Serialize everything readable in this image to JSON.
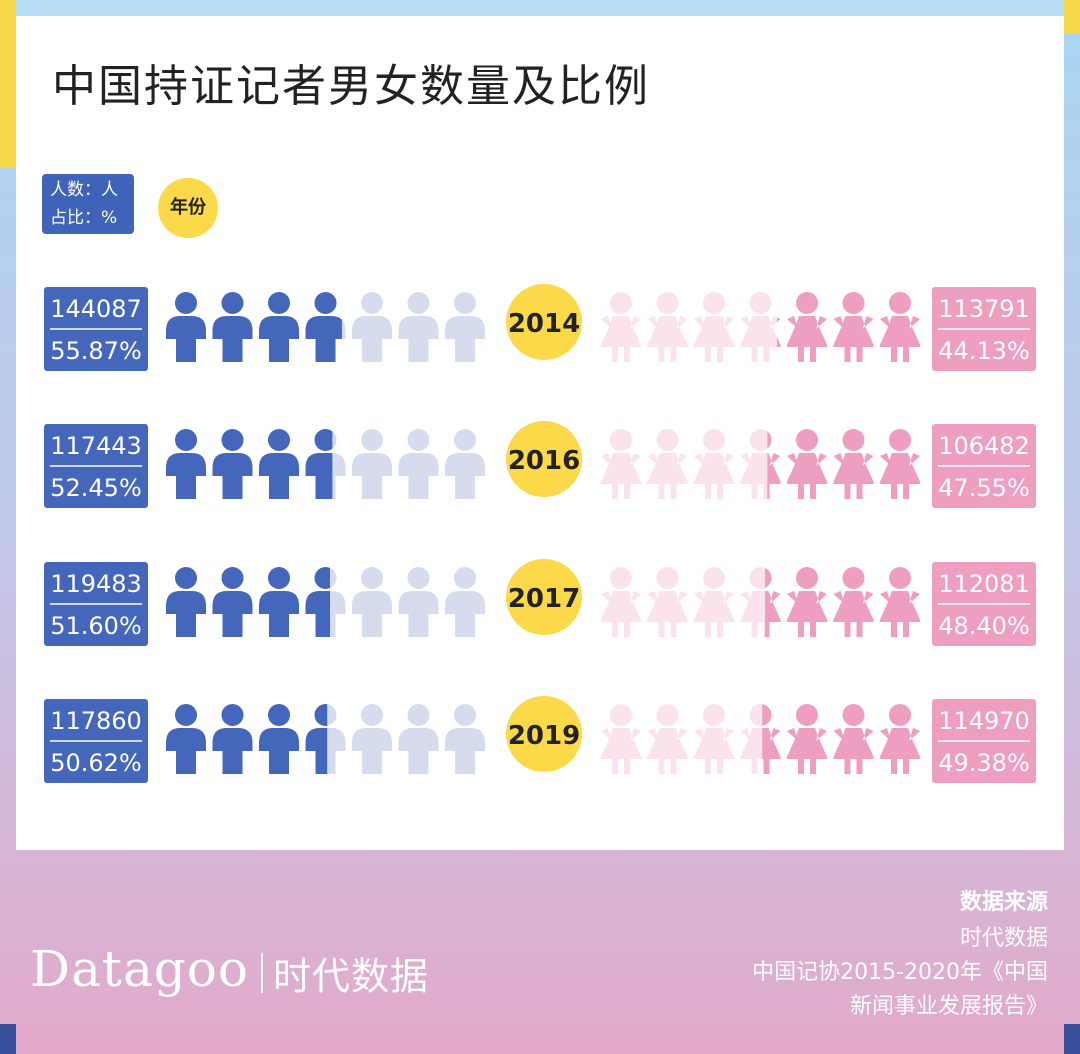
{
  "title": "中国持证记者男女数量及比例",
  "unit_line1": "人数：人",
  "unit_line2": "占比：%",
  "year_legend": "年份",
  "colors": {
    "male": "#4466bb",
    "male_light": "#d6dcee",
    "female": "#ee9ec0",
    "female_light": "#fbe3ee",
    "year_circle": "#fbd948"
  },
  "chart_data": {
    "type": "pictogram",
    "icons_per_side": 7,
    "rows": [
      {
        "year": "2014",
        "male_count": "144087",
        "male_pct": "55.87%",
        "male_pct_value": 55.87,
        "female_count": "113791",
        "female_pct": "44.13%",
        "female_pct_value": 44.13
      },
      {
        "year": "2016",
        "male_count": "117443",
        "male_pct": "52.45%",
        "male_pct_value": 52.45,
        "female_count": "106482",
        "female_pct": "47.55%",
        "female_pct_value": 47.55
      },
      {
        "year": "2017",
        "male_count": "119483",
        "male_pct": "51.60%",
        "male_pct_value": 51.6,
        "female_count": "112081",
        "female_pct": "48.40%",
        "female_pct_value": 48.4
      },
      {
        "year": "2019",
        "male_count": "117860",
        "male_pct": "50.62%",
        "male_pct_value": 50.62,
        "female_count": "114970",
        "female_pct": "49.38%",
        "female_pct_value": 49.38
      }
    ]
  },
  "footer": {
    "source_title": "数据来源",
    "source_1": "时代数据",
    "source_2": "中国记协2015-2020年《中国",
    "source_3": "新闻事业发展报告》",
    "brand_en": "Datagoo",
    "brand_cn": "时代数据"
  }
}
